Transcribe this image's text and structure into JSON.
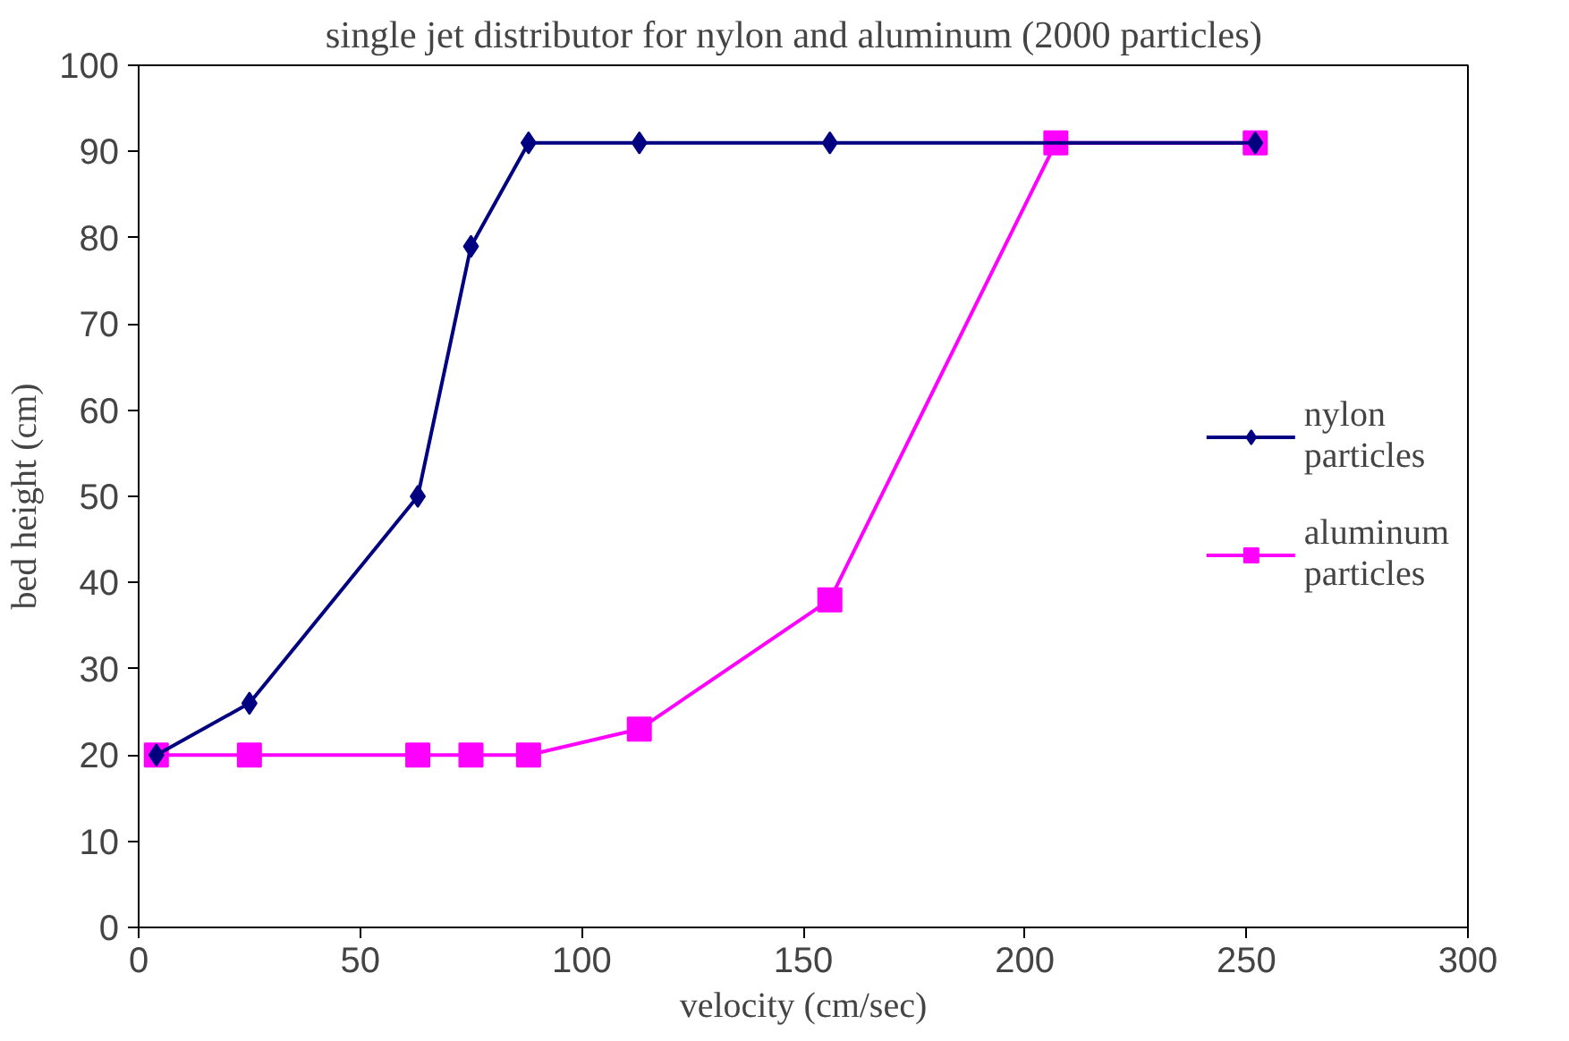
{
  "chart_data": {
    "type": "line",
    "title": "single jet distributor for nylon  and aluminum  (2000 particles)",
    "xlabel": "velocity (cm/sec)",
    "ylabel": "bed height (cm)",
    "xlim": [
      0,
      300
    ],
    "xticks": [
      0,
      50,
      100,
      150,
      200,
      250,
      300
    ],
    "ylim": [
      0,
      100
    ],
    "yticks": [
      0,
      10,
      20,
      30,
      40,
      50,
      60,
      70,
      80,
      90,
      100
    ],
    "grid": false,
    "legend": "right",
    "series": [
      {
        "name": "nylon particles",
        "color": "#000080",
        "marker": "diamond",
        "x": [
          4,
          25,
          63,
          75,
          88,
          113,
          156,
          252
        ],
        "values": [
          20,
          26,
          50,
          79,
          91,
          91,
          91,
          91
        ]
      },
      {
        "name": "aluminum particles",
        "color": "#ff00ff",
        "marker": "square",
        "x": [
          4,
          25,
          63,
          75,
          88,
          113,
          156,
          207,
          252
        ],
        "values": [
          20,
          20,
          20,
          20,
          20,
          23,
          38,
          91,
          91
        ]
      }
    ]
  }
}
